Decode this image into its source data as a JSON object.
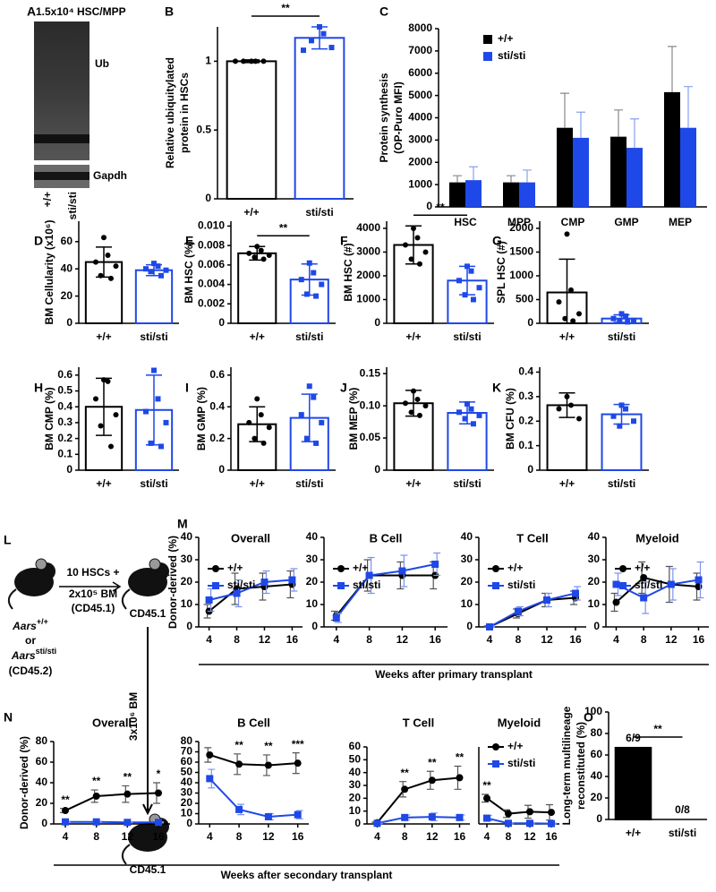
{
  "blot": {
    "label": "A",
    "title": "1.5x10⁴ HSC/MPP",
    "bands": [
      "Ub",
      "Gapdh"
    ],
    "lanes": [
      "+/+",
      "sti/sti"
    ]
  },
  "diagram": {
    "label": "L",
    "transfer": [
      "10 HSCs +",
      "2x10⁵ BM",
      "(CD45.1)"
    ],
    "recipient": "CD45.1",
    "secondary_transfer": "3x10⁶ BM",
    "secondary_recipient": "CD45.1",
    "donor": {
      "gene": "Aars",
      "genotypes": [
        "+/+",
        "sti/sti"
      ],
      "or": "or",
      "marker": "(CD45.2)"
    }
  },
  "chart_data": [
    {
      "label": "B",
      "type": "bar",
      "ylabel": [
        "Relative ubiquitylated",
        "protein in HSCs"
      ],
      "categories": [
        "+/+",
        "sti/sti"
      ],
      "values": [
        1,
        1.17
      ],
      "errors": [
        0.01,
        0.08
      ],
      "points": [
        [
          1,
          1,
          1,
          1,
          1
        ],
        [
          1.25,
          1.2,
          1.15,
          1.1,
          1.08
        ]
      ],
      "colors": [
        "#000000",
        "#1f48e8"
      ],
      "markers": [
        "circle",
        "square"
      ],
      "filled": false,
      "ylim": [
        0,
        1.25
      ],
      "yticks": [
        0,
        0.5,
        1
      ],
      "significance": "**"
    },
    {
      "label": "C",
      "type": "grouped_bar",
      "ylabel": [
        "Protein synthesis",
        "(OP-Puro MFI)"
      ],
      "categories": [
        "HSC",
        "MPP",
        "CMP",
        "GMP",
        "MEP"
      ],
      "series": [
        {
          "name": "+/+",
          "color": "#000000",
          "values": [
            1100,
            1100,
            3550,
            3150,
            5150
          ],
          "errors": [
            300,
            300,
            1550,
            1200,
            2050
          ]
        },
        {
          "name": "sti/sti",
          "color": "#1f48e8",
          "values": [
            1200,
            1100,
            3100,
            2650,
            3550
          ],
          "errors": [
            600,
            550,
            1150,
            1300,
            1850
          ]
        }
      ],
      "ylim": [
        0,
        8000
      ],
      "yticks": [
        0,
        1000,
        2000,
        3000,
        4000,
        5000,
        6000,
        7000,
        8000
      ],
      "legend": "upper left"
    },
    {
      "label": "D",
      "type": "bar",
      "ylabel": "BM Cellularity (x10⁶)",
      "categories": [
        "+/+",
        "sti/sti"
      ],
      "values": [
        45,
        39
      ],
      "errors": [
        11,
        4
      ],
      "points": [
        [
          63,
          50,
          45,
          42,
          35,
          33
        ],
        [
          44,
          42,
          40,
          39,
          38,
          35
        ]
      ],
      "colors": [
        "#000000",
        "#1f48e8"
      ],
      "markers": [
        "circle",
        "square"
      ],
      "filled": false,
      "ylim": [
        0,
        75
      ],
      "yticks": [
        0,
        20,
        40,
        60
      ]
    },
    {
      "label": "E",
      "type": "bar",
      "ylabel": "BM HSC (%)",
      "categories": [
        "+/+",
        "sti/sti"
      ],
      "values": [
        0.0072,
        0.0045
      ],
      "errors": [
        0.0007,
        0.0016
      ],
      "points": [
        [
          0.0079,
          0.0075,
          0.0072,
          0.007,
          0.0068,
          0.0066
        ],
        [
          0.0062,
          0.0052,
          0.0045,
          0.004,
          0.003,
          0.0028
        ]
      ],
      "colors": [
        "#000000",
        "#1f48e8"
      ],
      "markers": [
        "circle",
        "square"
      ],
      "filled": false,
      "ylim": [
        0,
        0.0105
      ],
      "yticks": [
        0,
        0.002,
        0.004,
        0.006,
        0.008,
        {
          "value": 0.01,
          "label": "0.010"
        }
      ],
      "significance": "**"
    },
    {
      "label": "F",
      "type": "bar",
      "ylabel": "BM HSC (#)",
      "categories": [
        "+/+",
        "sti/sti"
      ],
      "values": [
        3300,
        1800
      ],
      "errors": [
        800,
        600
      ],
      "points": [
        [
          4000,
          3600,
          3300,
          3000,
          2700,
          2500
        ],
        [
          2400,
          2200,
          1800,
          1500,
          1200,
          1000
        ]
      ],
      "colors": [
        "#000000",
        "#1f48e8"
      ],
      "markers": [
        "circle",
        "square"
      ],
      "filled": false,
      "ylim": [
        0,
        4300
      ],
      "yticks": [
        0,
        1000,
        2000,
        3000,
        4000
      ],
      "significance": "**"
    },
    {
      "label": "G",
      "type": "bar",
      "ylabel": "SPL HSC (#)",
      "categories": [
        "+/+",
        "sti/sti"
      ],
      "values": [
        650,
        100
      ],
      "errors": [
        700,
        80
      ],
      "points": [
        [
          1880,
          700,
          450,
          200,
          100,
          50
        ],
        [
          200,
          150,
          100,
          60,
          50,
          30
        ]
      ],
      "colors": [
        "#000000",
        "#1f48e8"
      ],
      "markers": [
        "circle",
        "square"
      ],
      "filled": false,
      "ylim": [
        0,
        2150
      ],
      "yticks": [
        0,
        500,
        1000,
        1500,
        2000
      ]
    },
    {
      "label": "H",
      "type": "bar",
      "ylabel": "BM CMP (%)",
      "categories": [
        "+/+",
        "sti/sti"
      ],
      "values": [
        0.4,
        0.38
      ],
      "errors": [
        0.18,
        0.22
      ],
      "points": [
        [
          0.57,
          0.56,
          0.45,
          0.35,
          0.28,
          0.15
        ],
        [
          0.63,
          0.45,
          0.37,
          0.3,
          0.17,
          0.15
        ]
      ],
      "colors": [
        "#000000",
        "#1f48e8"
      ],
      "markers": [
        "circle",
        "square"
      ],
      "filled": false,
      "ylim": [
        0,
        0.65
      ],
      "yticks": [
        0,
        0.1,
        0.2,
        0.3,
        0.4,
        0.5,
        0.6
      ]
    },
    {
      "label": "I",
      "type": "bar",
      "ylabel": "BM GMP (%)",
      "categories": [
        "+/+",
        "sti/sti"
      ],
      "values": [
        0.29,
        0.33
      ],
      "errors": [
        0.11,
        0.15
      ],
      "points": [
        [
          0.45,
          0.35,
          0.3,
          0.27,
          0.2,
          0.17
        ],
        [
          0.53,
          0.46,
          0.35,
          0.3,
          0.2,
          0.17
        ]
      ],
      "colors": [
        "#000000",
        "#1f48e8"
      ],
      "markers": [
        "circle",
        "square"
      ],
      "filled": false,
      "ylim": [
        0,
        0.65
      ],
      "yticks": [
        0,
        0.2,
        0.4,
        0.6
      ]
    },
    {
      "label": "J",
      "type": "bar",
      "ylabel": "BM MEP (%)",
      "categories": [
        "+/+",
        "sti/sti"
      ],
      "values": [
        0.104,
        0.089
      ],
      "errors": [
        0.02,
        0.017
      ],
      "points": [
        [
          0.123,
          0.11,
          0.104,
          0.1,
          0.09,
          0.085
        ],
        [
          0.103,
          0.095,
          0.09,
          0.085,
          0.08,
          0.072
        ]
      ],
      "colors": [
        "#000000",
        "#1f48e8"
      ],
      "markers": [
        "circle",
        "square"
      ],
      "filled": false,
      "ylim": [
        0,
        0.16
      ],
      "yticks": [
        0,
        0.05,
        {
          "value": 0.1,
          "label": "0.10"
        },
        0.15
      ]
    },
    {
      "label": "K",
      "type": "bar",
      "ylabel": "BM CFU (%)",
      "categories": [
        "+/+",
        "sti/sti"
      ],
      "values": [
        0.265,
        0.228
      ],
      "errors": [
        0.05,
        0.04
      ],
      "points": [
        [
          0.3,
          0.265,
          0.25,
          0.21
        ],
        [
          0.265,
          0.25,
          0.22,
          0.2,
          0.18
        ]
      ],
      "colors": [
        "#000000",
        "#1f48e8"
      ],
      "markers": [
        "circle",
        "square"
      ],
      "filled": false,
      "ylim": [
        0,
        0.42
      ],
      "yticks": [
        0,
        0.1,
        0.2,
        0.3,
        0.4
      ]
    },
    {
      "label": "M",
      "type": "line",
      "title": "Overall",
      "ylabel": "Donor-derived (%)",
      "xlabel": "Weeks after primary transplant",
      "x": [
        4,
        8,
        12,
        16
      ],
      "xlim": [
        2.5,
        17.5
      ],
      "xticks": [
        4,
        8,
        12,
        16
      ],
      "ylim": [
        0,
        40
      ],
      "yticks": [
        0,
        10,
        20,
        30,
        40
      ],
      "legend": "upper left",
      "series": [
        {
          "name": "+/+",
          "color": "#000000",
          "marker": "circle",
          "values": [
            7,
            17,
            18,
            19
          ],
          "errors": [
            3,
            7,
            6,
            6
          ]
        },
        {
          "name": "sti/sti",
          "color": "#1f48e8",
          "marker": "square",
          "values": [
            12,
            15,
            20,
            21
          ],
          "errors": [
            5,
            6,
            5,
            5
          ]
        }
      ]
    },
    {
      "type": "line",
      "title": "B Cell",
      "x": [
        4,
        8,
        12,
        16
      ],
      "xlim": [
        2.5,
        17.5
      ],
      "xticks": [
        4,
        8,
        12,
        16
      ],
      "ylim": [
        0,
        40
      ],
      "yticks": [
        0,
        10,
        20,
        30,
        40
      ],
      "legend": "upper left",
      "series": [
        {
          "name": "+/+",
          "color": "#000000",
          "marker": "circle",
          "values": [
            5,
            23,
            23,
            23
          ],
          "errors": [
            2,
            7,
            6,
            6
          ]
        },
        {
          "name": "sti/sti",
          "color": "#1f48e8",
          "marker": "square",
          "values": [
            4,
            23,
            25,
            28
          ],
          "errors": [
            2,
            8,
            7,
            5
          ]
        }
      ]
    },
    {
      "type": "line",
      "title": "T Cell",
      "x": [
        4,
        8,
        12,
        16
      ],
      "xlim": [
        2.5,
        17.5
      ],
      "xticks": [
        4,
        8,
        12,
        16
      ],
      "ylim": [
        0,
        40
      ],
      "yticks": [
        0,
        10,
        20,
        30,
        40
      ],
      "legend": "upper left",
      "series": [
        {
          "name": "+/+",
          "color": "#000000",
          "marker": "circle",
          "values": [
            0,
            6,
            12,
            13
          ],
          "errors": [
            0.5,
            2,
            3,
            3
          ]
        },
        {
          "name": "sti/sti",
          "color": "#1f48e8",
          "marker": "square",
          "values": [
            0,
            7,
            12,
            15
          ],
          "errors": [
            0.5,
            2,
            3,
            3
          ]
        }
      ]
    },
    {
      "type": "line",
      "title": "Myeloid",
      "x": [
        4,
        8,
        12,
        16
      ],
      "xlim": [
        2.5,
        17.5
      ],
      "xticks": [
        4,
        8,
        12,
        16
      ],
      "ylim": [
        0,
        40
      ],
      "yticks": [
        0,
        10,
        20,
        30,
        40
      ],
      "legend": "upper left",
      "series": [
        {
          "name": "+/+",
          "color": "#000000",
          "marker": "circle",
          "values": [
            11,
            22,
            19,
            18
          ],
          "errors": [
            4,
            7,
            8,
            6
          ]
        },
        {
          "name": "sti/sti",
          "color": "#1f48e8",
          "marker": "square",
          "values": [
            19,
            13,
            19,
            21
          ],
          "errors": [
            5,
            7,
            7,
            8
          ]
        }
      ]
    },
    {
      "label": "N",
      "type": "line",
      "title": "Overall",
      "ylabel": "Donor-derived (%)",
      "xlabel": "Weeks after secondary transplant",
      "x": [
        4,
        8,
        12,
        16
      ],
      "xlim": [
        2.5,
        17.5
      ],
      "xticks": [
        4,
        8,
        12,
        16
      ],
      "ylim": [
        0,
        80
      ],
      "yticks": [
        0,
        20,
        40,
        60,
        80
      ],
      "series": [
        {
          "name": "+/+",
          "color": "#000000",
          "marker": "circle",
          "values": [
            13,
            27,
            29,
            30
          ],
          "errors": [
            2,
            6,
            8,
            10
          ]
        },
        {
          "name": "sti/sti",
          "color": "#1f48e8",
          "marker": "square",
          "values": [
            2,
            2,
            1.5,
            1.5
          ],
          "errors": [
            0.5,
            0.5,
            0.5,
            0.5
          ]
        }
      ],
      "annotations": [
        {
          "x": 4,
          "text": "**"
        },
        {
          "x": 8,
          "text": "**"
        },
        {
          "x": 12,
          "text": "**"
        },
        {
          "x": 16,
          "text": "*"
        }
      ]
    },
    {
      "type": "line",
      "title": "B Cell",
      "x": [
        4,
        8,
        12,
        16
      ],
      "xlim": [
        2.5,
        17.5
      ],
      "xticks": [
        4,
        8,
        12,
        16
      ],
      "ylim": [
        0,
        80
      ],
      "yticks": [
        0,
        10,
        20,
        30,
        40,
        50,
        60,
        70,
        80
      ],
      "series": [
        {
          "name": "+/+",
          "color": "#000000",
          "marker": "circle",
          "values": [
            67,
            58,
            57,
            59
          ],
          "errors": [
            7,
            10,
            10,
            10
          ]
        },
        {
          "name": "sti/sti",
          "color": "#1f48e8",
          "marker": "square",
          "values": [
            44,
            14,
            7,
            9
          ],
          "errors": [
            9,
            5,
            3,
            4
          ]
        }
      ],
      "annotations": [
        {
          "x": 8,
          "text": "**"
        },
        {
          "x": 12,
          "text": "**"
        },
        {
          "x": 16,
          "text": "***"
        }
      ]
    },
    {
      "type": "line",
      "title": "T Cell",
      "x": [
        4,
        8,
        12,
        16
      ],
      "xlim": [
        2.5,
        17.5
      ],
      "xticks": [
        4,
        8,
        12,
        16
      ],
      "ylim": [
        0,
        60
      ],
      "yticks": [
        0,
        10,
        20,
        30,
        40,
        50,
        60
      ],
      "series": [
        {
          "name": "+/+",
          "color": "#000000",
          "marker": "circle",
          "values": [
            1,
            27,
            34,
            36
          ],
          "errors": [
            0.5,
            6,
            7,
            9
          ]
        },
        {
          "name": "sti/sti",
          "color": "#1f48e8",
          "marker": "square",
          "values": [
            0.5,
            5,
            5.5,
            5
          ],
          "errors": [
            0.3,
            2,
            3,
            2
          ]
        }
      ],
      "annotations": [
        {
          "x": 8,
          "text": "**"
        },
        {
          "x": 12,
          "text": "**"
        },
        {
          "x": 16,
          "text": "**"
        }
      ]
    },
    {
      "type": "line",
      "title": "Myeloid",
      "x": [
        4,
        8,
        12,
        16
      ],
      "xlim": [
        2.5,
        17.5
      ],
      "xticks": [
        4,
        8,
        12,
        16
      ],
      "ylim": [
        0,
        60
      ],
      "legend": "upper left",
      "series": [
        {
          "name": "+/+",
          "color": "#000000",
          "marker": "circle",
          "values": [
            20,
            8,
            9.5,
            9
          ],
          "errors": [
            3,
            3,
            5,
            6
          ]
        },
        {
          "name": "sti/sti",
          "color": "#1f48e8",
          "marker": "square",
          "values": [
            4.5,
            0.5,
            0.5,
            0.3
          ],
          "errors": [
            2,
            0.5,
            0.5,
            0.3
          ]
        }
      ],
      "annotations": [
        {
          "x": 4,
          "text": "**"
        }
      ]
    },
    {
      "label": "O",
      "type": "bar",
      "ylabel": [
        "Long-term multilineage",
        "reconstituted (%)"
      ],
      "categories": [
        "+/+",
        "sti/sti"
      ],
      "values": [
        66.7,
        0
      ],
      "value_labels": [
        "6/9",
        "0/8"
      ],
      "colors": [
        "#000000",
        "#000000"
      ],
      "filled": true,
      "ylim": [
        0,
        100
      ],
      "yticks": [
        0,
        20,
        40,
        60,
        80,
        100
      ],
      "significance": "**"
    }
  ]
}
